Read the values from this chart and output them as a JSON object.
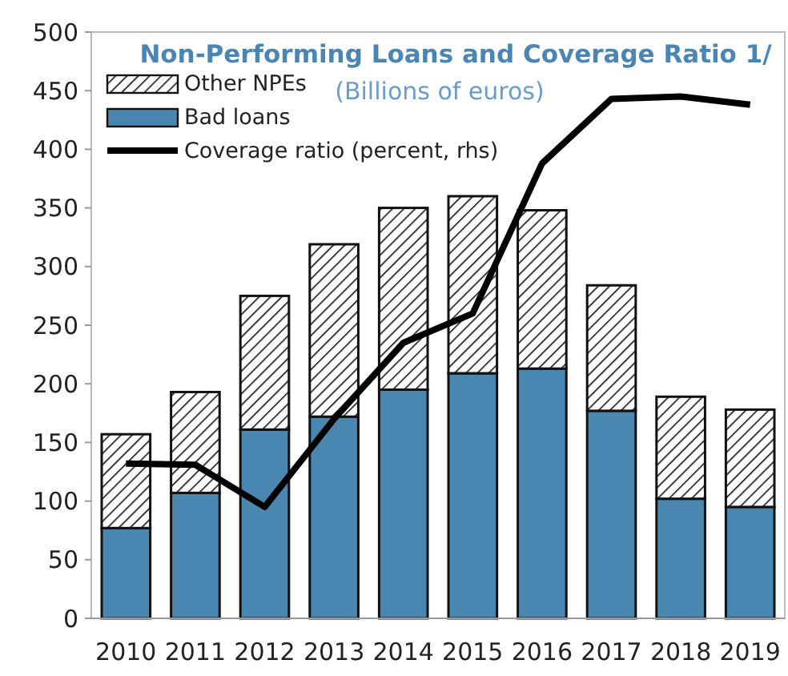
{
  "chart_data": {
    "type": "bar",
    "title": "Non-Performing Loans and Coverage Ratio 1/",
    "subtitle": "(Billions of euros)",
    "categories": [
      "2010",
      "2011",
      "2012",
      "2013",
      "2014",
      "2015",
      "2016",
      "2017",
      "2018",
      "2019"
    ],
    "stacked": true,
    "series": [
      {
        "name": "Bad loans",
        "color": "#4a87b0",
        "values": [
          77,
          107,
          161,
          172,
          195,
          209,
          213,
          177,
          102,
          95
        ]
      },
      {
        "name": "Other NPEs",
        "color": "#111111",
        "values": [
          80,
          86,
          114,
          147,
          155,
          151,
          135,
          107,
          87,
          83
        ]
      },
      {
        "type": "line",
        "name": "Coverage ratio (percent, rhs)",
        "color": "#000000",
        "values": [
          132,
          131,
          95,
          170,
          235,
          260,
          388,
          443,
          445,
          438
        ]
      }
    ],
    "ylim": [
      0,
      500
    ],
    "yticks": [
      0,
      50,
      100,
      150,
      200,
      250,
      300,
      350,
      400,
      450,
      500
    ],
    "grid": false,
    "legend": "top left",
    "line_style": "solid"
  }
}
